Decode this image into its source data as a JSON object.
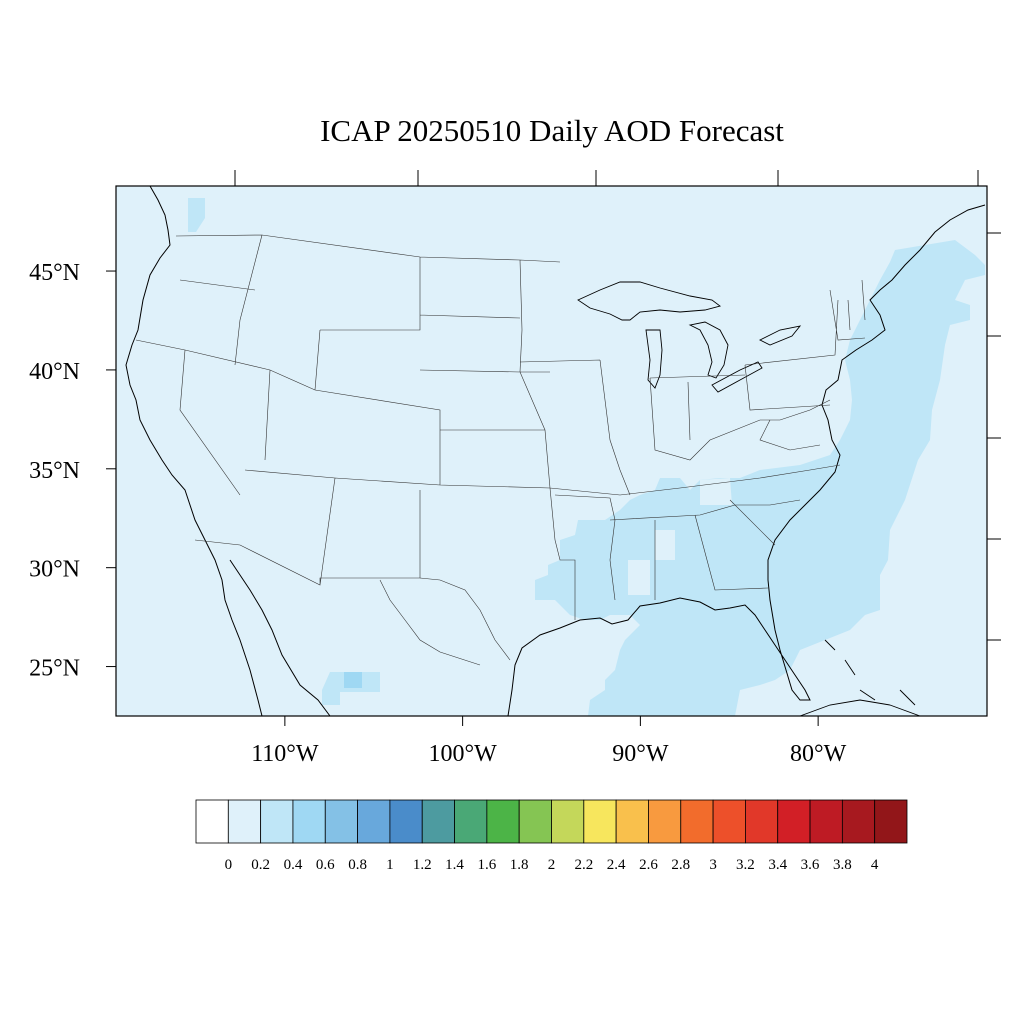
{
  "title": "ICAP 20250510 Daily AOD Forecast",
  "map": {
    "lon_range": [
      -119.5,
      -70.5
    ],
    "lat_range": [
      22.5,
      49.3
    ],
    "lon_ticks": [
      {
        "value": -110,
        "label": "110°W"
      },
      {
        "value": -100,
        "label": "100°W"
      },
      {
        "value": -90,
        "label": "90°W"
      },
      {
        "value": -80,
        "label": "80°W"
      }
    ],
    "lat_ticks": [
      {
        "value": 45,
        "label": "45°N"
      },
      {
        "value": 40,
        "label": "40°N"
      },
      {
        "value": 35,
        "label": "35°N"
      },
      {
        "value": 30,
        "label": "30°N"
      },
      {
        "value": 25,
        "label": "25°N"
      }
    ],
    "background_aod_bin": "0.0–0.2",
    "elevated_regions": [
      {
        "name": "Southeast / Gulf Coast / Atlantic seaboard",
        "aod_bin": "0.2–0.4"
      },
      {
        "name": "Northern Mexico small patch",
        "aod_bin": "0.4–0.6"
      }
    ]
  },
  "colorbar": {
    "colors": [
      "#ffffff",
      "#dff1fa",
      "#bfe6f7",
      "#9fd8f3",
      "#84c1e6",
      "#68a8dc",
      "#4a8cca",
      "#4d9ba0",
      "#4aa876",
      "#4cb447",
      "#85c553",
      "#c4d75a",
      "#f7e65d",
      "#f9c04c",
      "#f89a3f",
      "#f26c2c",
      "#ed502a",
      "#e13829",
      "#d21f26",
      "#be1b24",
      "#a7191f",
      "#921619"
    ],
    "labels": [
      "0",
      "0.2",
      "0.4",
      "0.6",
      "0.8",
      "1",
      "1.2",
      "1.4",
      "1.6",
      "1.8",
      "2",
      "2.2",
      "2.4",
      "2.6",
      "2.8",
      "3",
      "3.2",
      "3.4",
      "3.6",
      "3.8",
      "4"
    ]
  }
}
